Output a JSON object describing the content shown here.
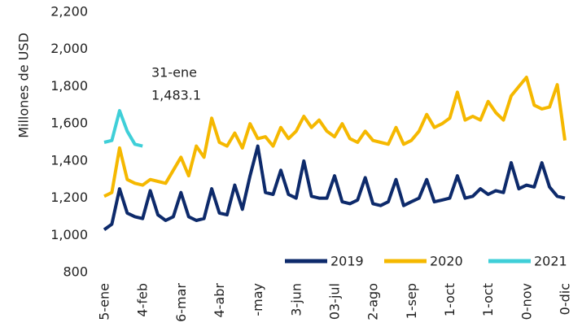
{
  "chart_data": {
    "type": "line",
    "y_label": "Millones de USD",
    "annotations": [
      "31-ene",
      "1,483.1"
    ],
    "categories": [
      "5-ene",
      null,
      null,
      null,
      null,
      "4-feb",
      null,
      null,
      null,
      null,
      "6-mar",
      null,
      null,
      null,
      null,
      "4-abr",
      null,
      null,
      null,
      null,
      "-may",
      null,
      null,
      null,
      null,
      "3-jun",
      null,
      null,
      null,
      null,
      "03-jul",
      null,
      null,
      null,
      null,
      "2-ago",
      null,
      null,
      null,
      null,
      "1-sep",
      null,
      null,
      null,
      null,
      "1-oct",
      null,
      null,
      null,
      null,
      "1-oct",
      null,
      null,
      null,
      null,
      "0-nov",
      null,
      null,
      null,
      null,
      "0-dic"
    ],
    "series": [
      {
        "name": "2019",
        "color": "#0d2a6b",
        "values": [
          1030,
          1060,
          1250,
          1120,
          1100,
          1090,
          1240,
          1110,
          1080,
          1100,
          1230,
          1100,
          1080,
          1090,
          1250,
          1120,
          1110,
          1270,
          1140,
          1320,
          1480,
          1230,
          1220,
          1350,
          1220,
          1200,
          1400,
          1210,
          1200,
          1200,
          1320,
          1180,
          1170,
          1190,
          1310,
          1170,
          1160,
          1180,
          1300,
          1160,
          1180,
          1200,
          1300,
          1180,
          1190,
          1200,
          1320,
          1200,
          1210,
          1250,
          1220,
          1240,
          1230,
          1390,
          1250,
          1270,
          1260,
          1390,
          1260,
          1210,
          1200
        ]
      },
      {
        "name": "2020",
        "color": "#f5b800",
        "values": [
          1210,
          1230,
          1470,
          1300,
          1280,
          1270,
          1300,
          1290,
          1280,
          1350,
          1420,
          1320,
          1480,
          1420,
          1630,
          1500,
          1480,
          1550,
          1470,
          1600,
          1520,
          1530,
          1480,
          1580,
          1520,
          1560,
          1640,
          1580,
          1620,
          1560,
          1530,
          1600,
          1520,
          1500,
          1560,
          1510,
          1500,
          1490,
          1580,
          1490,
          1510,
          1560,
          1650,
          1580,
          1600,
          1630,
          1770,
          1620,
          1640,
          1620,
          1720,
          1660,
          1620,
          1750,
          1800,
          1850,
          1700,
          1680,
          1690,
          1810,
          1510
        ]
      },
      {
        "name": "2021",
        "color": "#3fcfd8",
        "values": [
          1500,
          1510,
          1670,
          1560,
          1490,
          1480,
          null,
          null,
          null,
          null,
          null,
          null,
          null,
          null,
          null,
          null,
          null,
          null,
          null,
          null,
          null,
          null,
          null,
          null,
          null,
          null,
          null,
          null,
          null,
          null,
          null,
          null,
          null,
          null,
          null,
          null,
          null,
          null,
          null,
          null,
          null,
          null,
          null,
          null,
          null,
          null,
          null,
          null,
          null,
          null,
          null,
          null,
          null,
          null,
          null,
          null,
          null,
          null,
          null,
          null,
          null
        ]
      }
    ],
    "ylim": [
      800,
      2200
    ],
    "yticks": [
      800,
      {
        "value": 1000,
        "label": "1,000"
      },
      {
        "value": 1200,
        "label": "1,200"
      },
      {
        "value": 1400,
        "label": "1,400"
      },
      {
        "value": 1600,
        "label": "1,600"
      },
      {
        "value": 1800,
        "label": "1,800"
      },
      {
        "value": 2000,
        "label": "2,000"
      },
      {
        "value": 2200,
        "label": "2,200"
      }
    ],
    "grid": false,
    "legend": "lower right"
  }
}
